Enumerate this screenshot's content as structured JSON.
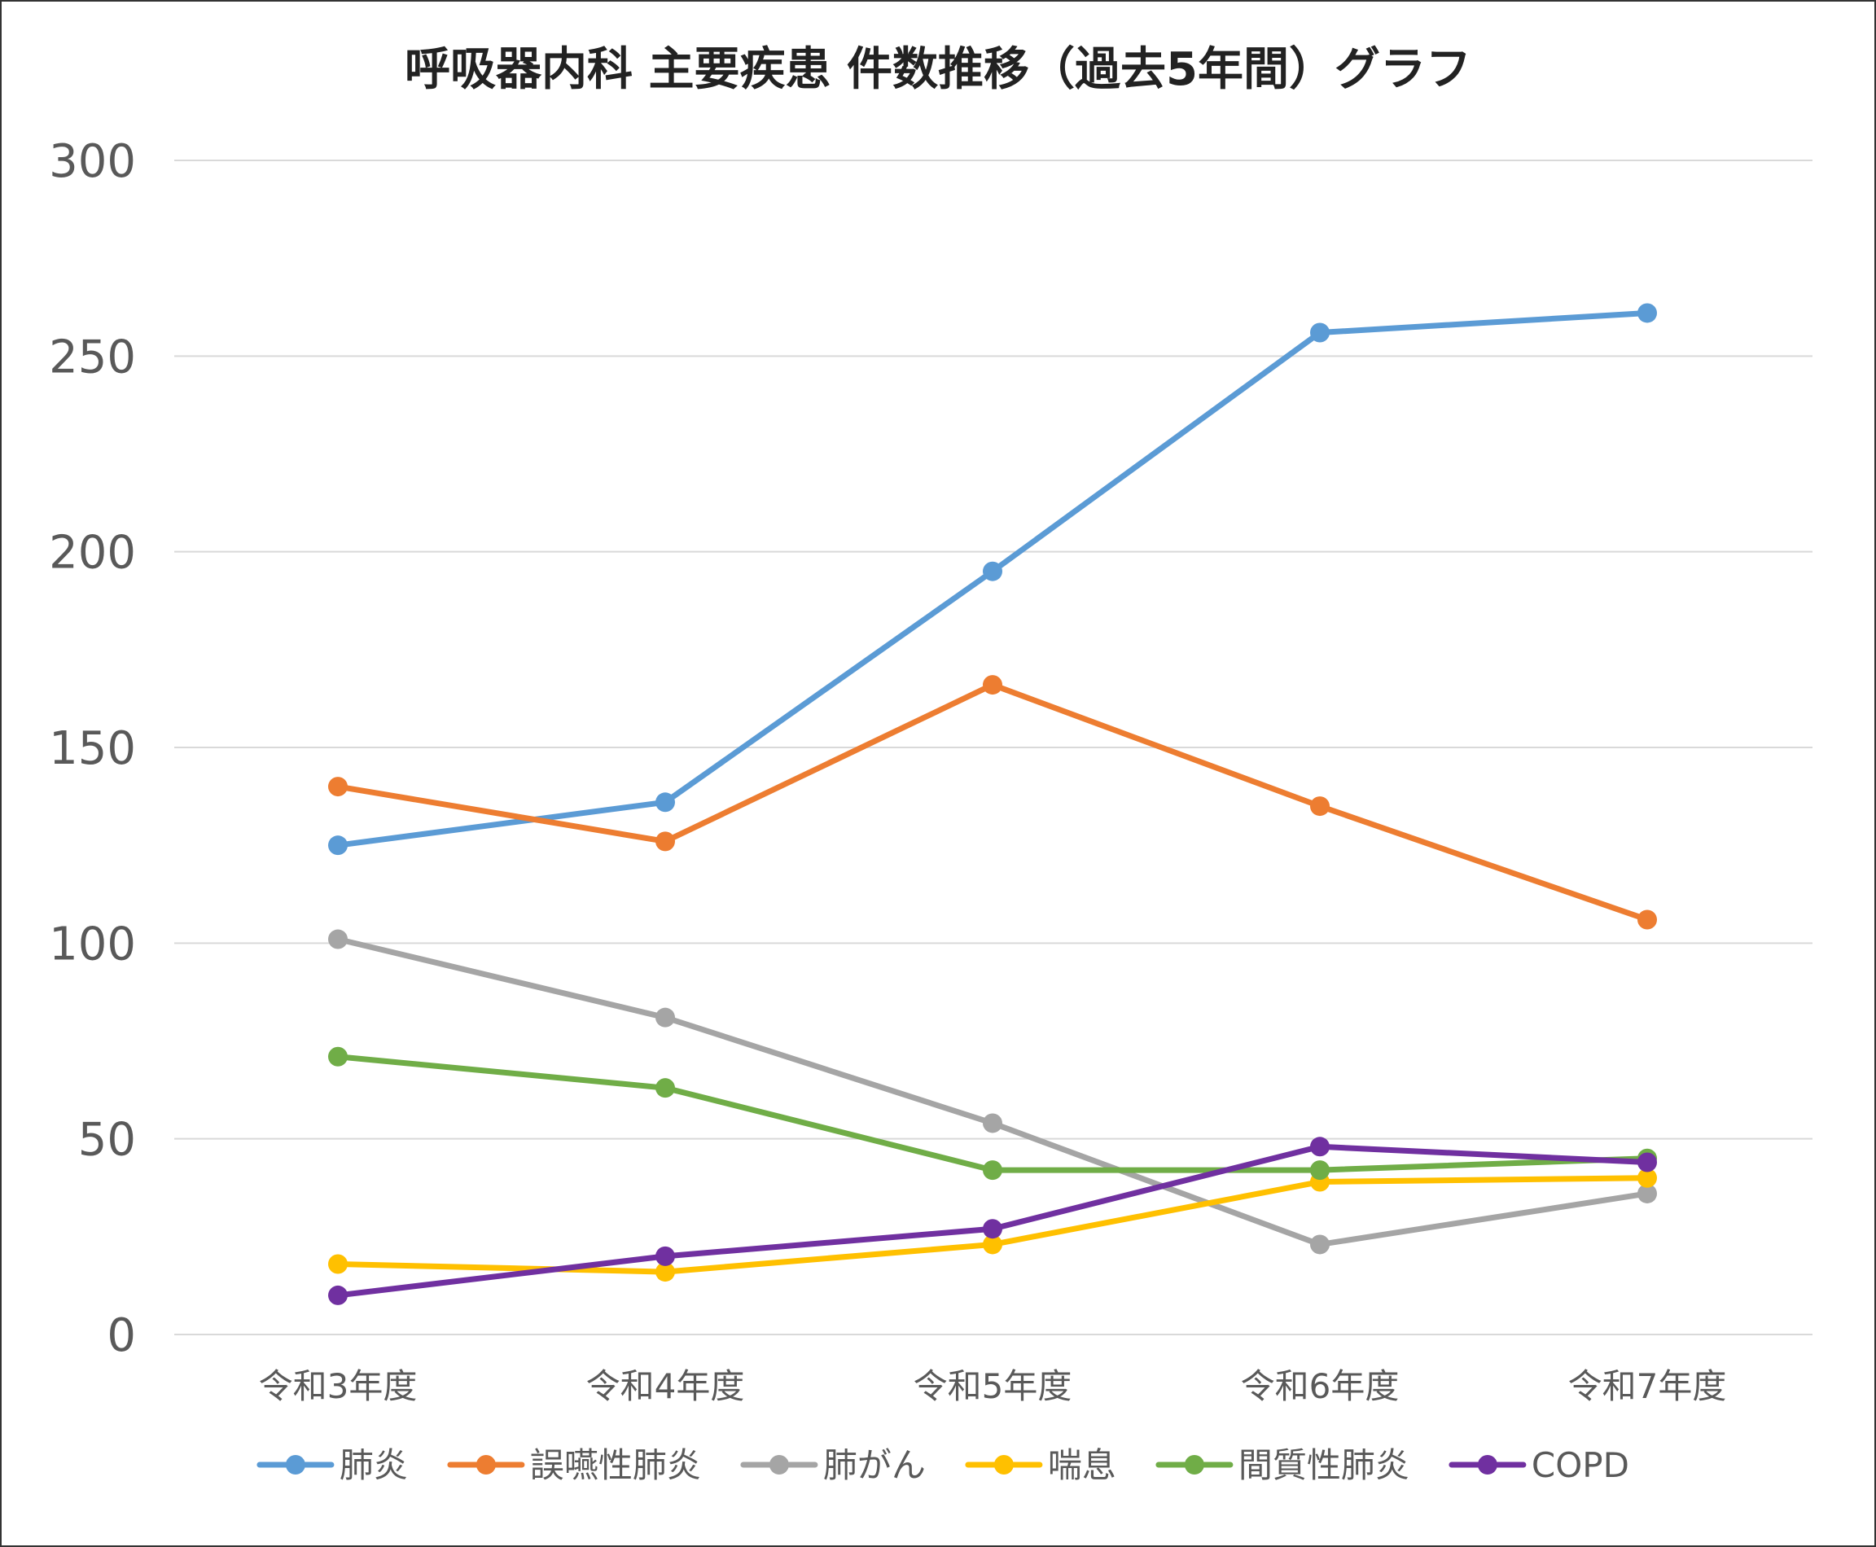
{
  "chart_data": {
    "type": "line",
    "title": "呼吸器内科 主要疾患 件数推移（過去5年間）グラフ",
    "xlabel": "",
    "ylabel": "",
    "categories": [
      "令和3年度",
      "令和4年度",
      "令和5年度",
      "令和6年度",
      "令和7年度"
    ],
    "ylim": [
      0,
      300
    ],
    "yticks": [
      0,
      50,
      100,
      150,
      200,
      250,
      300
    ],
    "grid": true,
    "legend_position": "bottom",
    "series": [
      {
        "name": "肺炎",
        "color": "#5B9BD5",
        "values": [
          125,
          136,
          195,
          256,
          261
        ]
      },
      {
        "name": "誤嚥性肺炎",
        "color": "#ED7D31",
        "values": [
          140,
          126,
          166,
          135,
          106
        ]
      },
      {
        "name": "肺がん",
        "color": "#A5A5A5",
        "values": [
          101,
          81,
          54,
          23,
          36
        ]
      },
      {
        "name": "喘息",
        "color": "#FFC000",
        "values": [
          18,
          16,
          23,
          39,
          40
        ]
      },
      {
        "name": "間質性肺炎",
        "color": "#70AD47",
        "values": [
          71,
          63,
          42,
          42,
          45
        ]
      },
      {
        "name": "COPD",
        "color": "#7030A0",
        "values": [
          10,
          20,
          27,
          48,
          44
        ]
      }
    ]
  }
}
